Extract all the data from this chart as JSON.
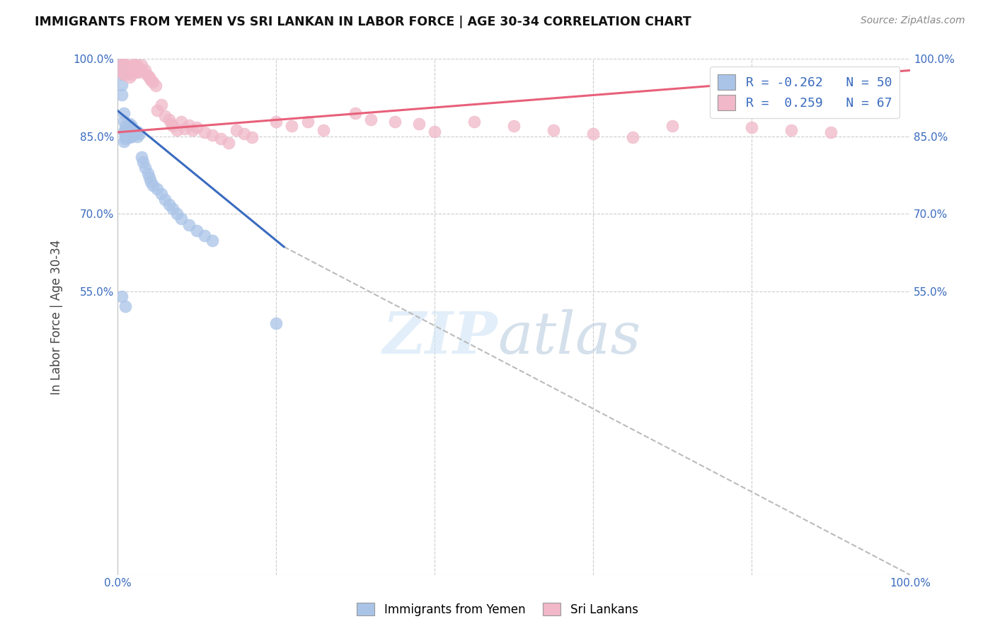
{
  "title": "IMMIGRANTS FROM YEMEN VS SRI LANKAN IN LABOR FORCE | AGE 30-34 CORRELATION CHART",
  "source": "Source: ZipAtlas.com",
  "ylabel": "In Labor Force | Age 30-34",
  "xlim": [
    0.0,
    1.0
  ],
  "ylim": [
    0.0,
    1.0
  ],
  "ytick_positions": [
    0.55,
    0.7,
    0.85,
    1.0
  ],
  "ytick_labels": [
    "55.0%",
    "70.0%",
    "85.0%",
    "100.0%"
  ],
  "xtick_positions": [
    0.0,
    1.0
  ],
  "xtick_labels": [
    "0.0%",
    "100.0%"
  ],
  "legend_r_blue": "-0.262",
  "legend_n_blue": "50",
  "legend_r_pink": "0.259",
  "legend_n_pink": "67",
  "blue_color": "#aac4e8",
  "pink_color": "#f0b8c8",
  "blue_line_color": "#3a6bbf",
  "pink_line_color": "#e8607a",
  "dashed_line_color": "#bbbbbb",
  "grid_color": "#cccccc",
  "background_color": "#ffffff",
  "blue_scatter_x": [
    0.005,
    0.005,
    0.005,
    0.005,
    0.005,
    0.008,
    0.008,
    0.008,
    0.008,
    0.01,
    0.01,
    0.01,
    0.01,
    0.01,
    0.012,
    0.012,
    0.012,
    0.015,
    0.015,
    0.015,
    0.015,
    0.018,
    0.018,
    0.018,
    0.02,
    0.022,
    0.025,
    0.025,
    0.028,
    0.03,
    0.032,
    0.035,
    0.038,
    0.04,
    0.042,
    0.045,
    0.05,
    0.055,
    0.06,
    0.065,
    0.07,
    0.075,
    0.08,
    0.09,
    0.1,
    0.11,
    0.12,
    0.005,
    0.01,
    0.2
  ],
  "blue_scatter_y": [
    0.99,
    0.98,
    0.97,
    0.95,
    0.93,
    0.895,
    0.88,
    0.86,
    0.84,
    0.87,
    0.86,
    0.855,
    0.85,
    0.845,
    0.862,
    0.855,
    0.848,
    0.875,
    0.868,
    0.858,
    0.848,
    0.87,
    0.86,
    0.85,
    0.862,
    0.855,
    0.86,
    0.85,
    0.855,
    0.81,
    0.8,
    0.79,
    0.778,
    0.77,
    0.762,
    0.755,
    0.748,
    0.738,
    0.728,
    0.718,
    0.71,
    0.7,
    0.69,
    0.678,
    0.668,
    0.658,
    0.648,
    0.54,
    0.52,
    0.488
  ],
  "pink_scatter_x": [
    0.005,
    0.005,
    0.008,
    0.008,
    0.008,
    0.01,
    0.01,
    0.01,
    0.012,
    0.012,
    0.015,
    0.015,
    0.015,
    0.018,
    0.018,
    0.02,
    0.02,
    0.022,
    0.022,
    0.025,
    0.025,
    0.028,
    0.03,
    0.032,
    0.035,
    0.038,
    0.04,
    0.042,
    0.045,
    0.048,
    0.05,
    0.055,
    0.06,
    0.065,
    0.068,
    0.07,
    0.075,
    0.08,
    0.085,
    0.09,
    0.095,
    0.1,
    0.11,
    0.12,
    0.13,
    0.14,
    0.15,
    0.16,
    0.17,
    0.2,
    0.22,
    0.24,
    0.26,
    0.3,
    0.32,
    0.35,
    0.38,
    0.4,
    0.45,
    0.5,
    0.55,
    0.6,
    0.65,
    0.7,
    0.8,
    0.85,
    0.9
  ],
  "pink_scatter_y": [
    0.99,
    0.975,
    0.99,
    0.98,
    0.97,
    0.99,
    0.98,
    0.97,
    0.985,
    0.975,
    0.985,
    0.975,
    0.965,
    0.98,
    0.97,
    0.99,
    0.978,
    0.988,
    0.975,
    0.988,
    0.975,
    0.98,
    0.988,
    0.975,
    0.978,
    0.968,
    0.965,
    0.96,
    0.955,
    0.948,
    0.9,
    0.912,
    0.89,
    0.882,
    0.875,
    0.87,
    0.862,
    0.878,
    0.865,
    0.872,
    0.862,
    0.868,
    0.858,
    0.852,
    0.845,
    0.838,
    0.862,
    0.855,
    0.848,
    0.878,
    0.87,
    0.878,
    0.862,
    0.895,
    0.882,
    0.878,
    0.875,
    0.86,
    0.878,
    0.87,
    0.862,
    0.855,
    0.848,
    0.87,
    0.868,
    0.862,
    0.858
  ],
  "blue_line_x": [
    0.0,
    0.21
  ],
  "blue_line_y": [
    0.9,
    0.636
  ],
  "pink_line_x": [
    0.0,
    1.0
  ],
  "pink_line_y": [
    0.858,
    0.978
  ],
  "dashed_line_x": [
    0.21,
    1.0
  ],
  "dashed_line_y": [
    0.636,
    0.0
  ]
}
